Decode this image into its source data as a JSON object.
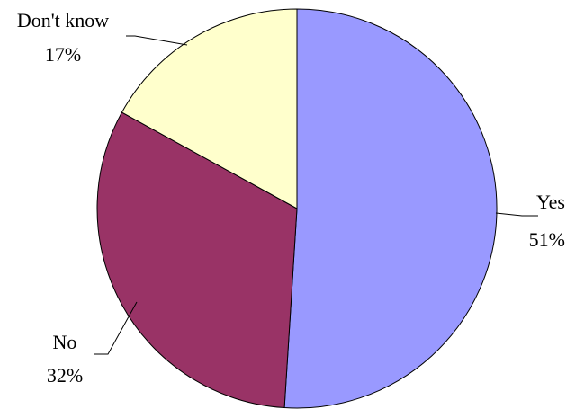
{
  "chart_data": {
    "type": "pie",
    "categories": [
      "Yes",
      "No",
      "Don't know"
    ],
    "values": [
      51,
      32,
      17
    ],
    "value_labels": [
      "51%",
      "32%",
      "17%"
    ],
    "colors": [
      "#9999FF",
      "#993366",
      "#FFFFCC"
    ],
    "start_angle_deg": 0,
    "direction": "clockwise",
    "legend": "none"
  }
}
